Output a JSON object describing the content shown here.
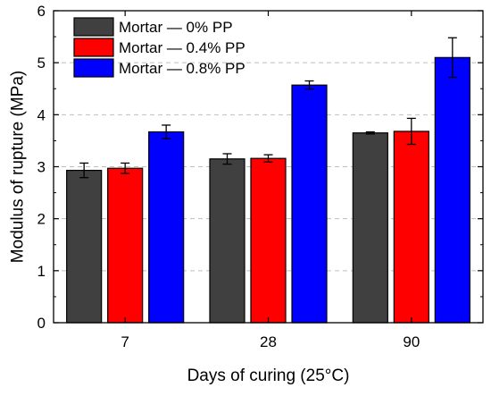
{
  "chart_data": {
    "type": "bar",
    "title": "",
    "xlabel": "Days of curing (25°C)",
    "ylabel": "Modulus of rupture (MPa)",
    "categories": [
      "7",
      "28",
      "90"
    ],
    "ylim": [
      0,
      6
    ],
    "yticks": [
      "0",
      "1",
      "2",
      "3",
      "4",
      "5",
      "6"
    ],
    "grid": "horizontal dashed",
    "legend_position": "top-left",
    "series": [
      {
        "name": "Mortar — 0% PP",
        "color": "#404040",
        "values": [
          2.93,
          3.15,
          3.65
        ],
        "errors": [
          0.14,
          0.1,
          0.02
        ]
      },
      {
        "name": "Mortar — 0.4% PP",
        "color": "#ff0000",
        "values": [
          2.97,
          3.16,
          3.68
        ],
        "errors": [
          0.1,
          0.07,
          0.25
        ]
      },
      {
        "name": "Mortar — 0.8% PP",
        "color": "#0000ff",
        "values": [
          3.67,
          4.57,
          5.1
        ],
        "errors": [
          0.13,
          0.08,
          0.38
        ]
      }
    ]
  }
}
